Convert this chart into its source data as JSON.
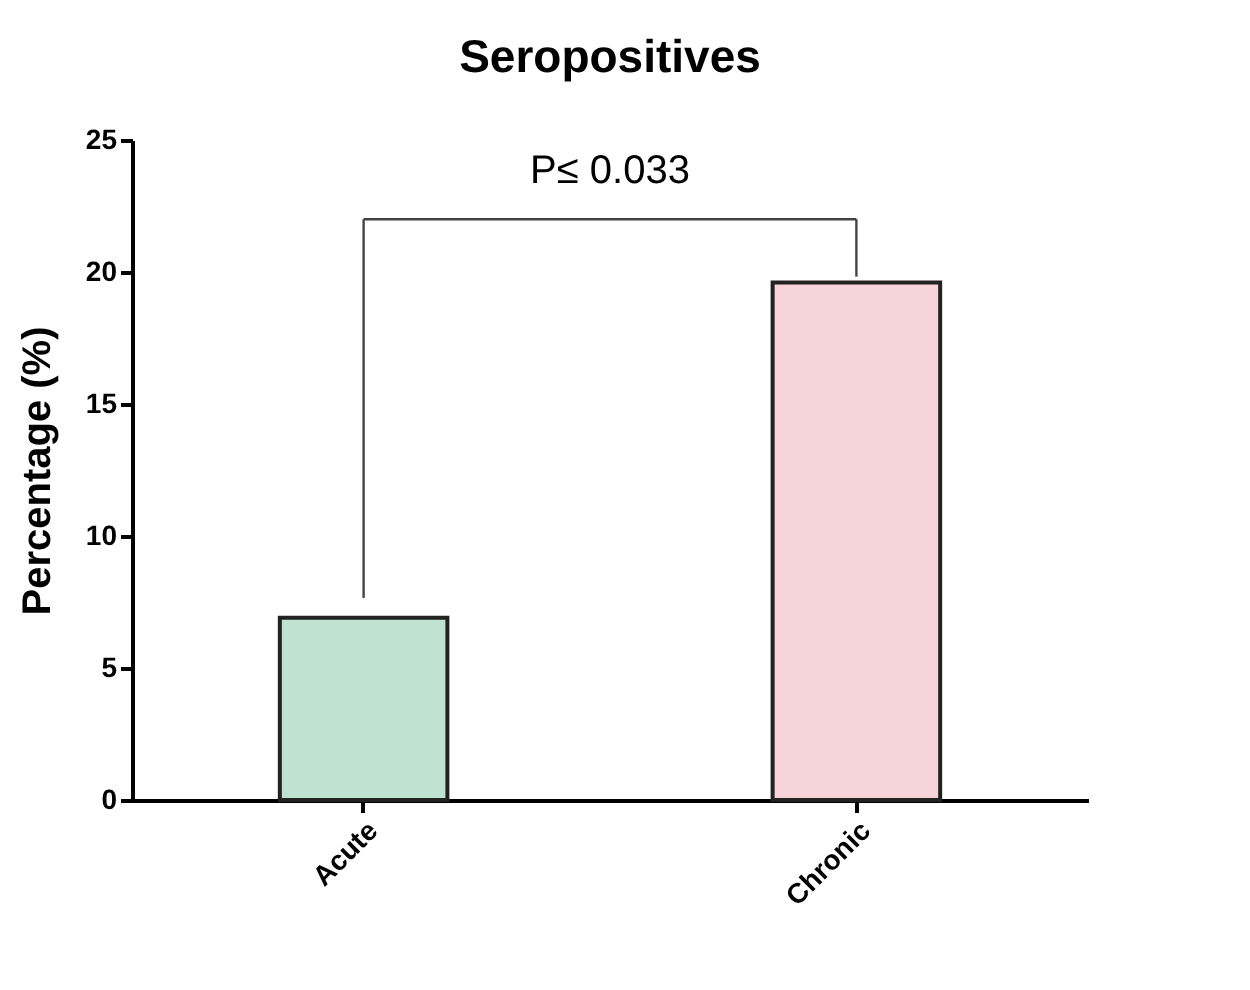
{
  "chart_data": {
    "type": "bar",
    "title": "Seropositives",
    "ylabel": "Percentage (%)",
    "categories": [
      "Acute",
      "Chronic"
    ],
    "values": [
      6.9,
      19.6
    ],
    "colors": [
      "#bfe3d0",
      "#f7d3da"
    ],
    "ylim": [
      0,
      25
    ],
    "yticks": [
      0,
      5,
      10,
      15,
      20,
      25
    ],
    "grid": false,
    "legend": false,
    "annotations": [
      "P≤ 0.033"
    ]
  }
}
